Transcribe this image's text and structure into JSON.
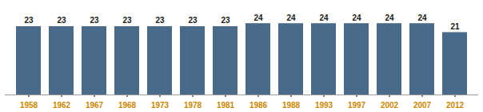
{
  "chart_data": {
    "type": "bar",
    "categories": [
      "1958",
      "1962",
      "1967",
      "1968",
      "1973",
      "1978",
      "1981",
      "1986",
      "1988",
      "1993",
      "1997",
      "2002",
      "2007",
      "2012"
    ],
    "values": [
      23,
      23,
      23,
      23,
      23,
      23,
      23,
      24,
      24,
      24,
      24,
      24,
      24,
      21
    ],
    "color": "#4A6A8A",
    "ylim": [
      0,
      27
    ],
    "data_labels": true,
    "tick_labels": "x",
    "grid": false
  }
}
